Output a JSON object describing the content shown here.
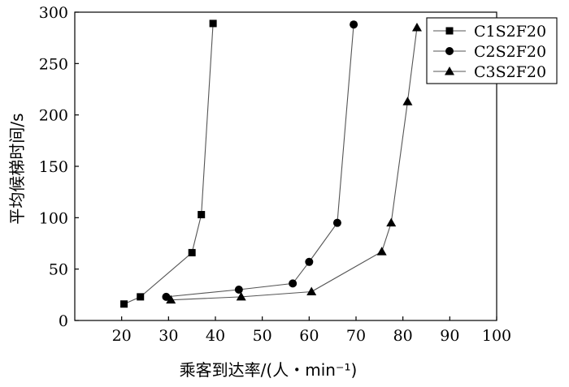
{
  "chart_data": {
    "type": "line",
    "title": "",
    "xlabel": "乘客到达率/(人・min⁻¹)",
    "ylabel": "平均候梯时间/s",
    "xlim": [
      10,
      100
    ],
    "ylim": [
      0,
      300
    ],
    "xticks": [
      20,
      30,
      40,
      50,
      60,
      70,
      80,
      90,
      100
    ],
    "yticks": [
      0,
      50,
      100,
      150,
      200,
      250,
      300
    ],
    "grid": false,
    "legend_position": "top-right",
    "series": [
      {
        "name": "C1S2F20",
        "marker": "square",
        "x": [
          20.5,
          24,
          35,
          37,
          39.5
        ],
        "y": [
          16,
          23,
          66,
          103,
          289
        ]
      },
      {
        "name": "C2S2F20",
        "marker": "circle",
        "x": [
          29.5,
          45,
          56.5,
          60,
          66,
          69.5
        ],
        "y": [
          23,
          30,
          36,
          57,
          95,
          288
        ]
      },
      {
        "name": "C3S2F20",
        "marker": "triangle",
        "x": [
          30.5,
          45.5,
          60.5,
          75.5,
          77.5,
          81,
          83
        ],
        "y": [
          20,
          23,
          28,
          67,
          95,
          213,
          285
        ]
      }
    ]
  }
}
